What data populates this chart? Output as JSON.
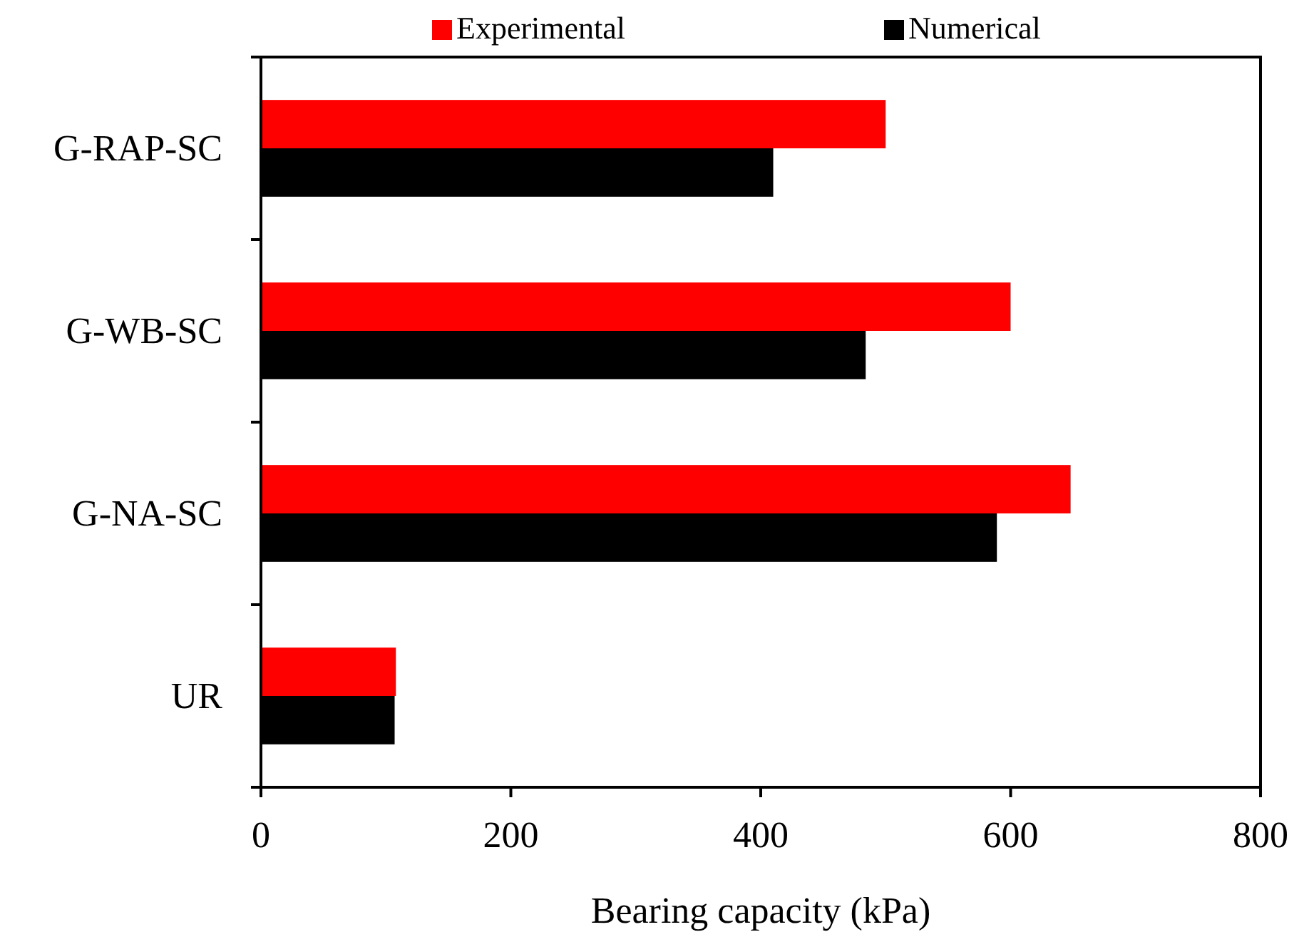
{
  "chart_data": {
    "type": "bar",
    "orientation": "horizontal",
    "xlabel": "Bearing capacity (kPa)",
    "categories": [
      "G-RAP-SC",
      "G-WB-SC",
      "G-NA-SC",
      "UR"
    ],
    "series": [
      {
        "name": "Experimental",
        "color": "#ff0000",
        "values": [
          500,
          600,
          648,
          108
        ]
      },
      {
        "name": "Numerical",
        "color": "#000000",
        "values": [
          410,
          484,
          589,
          107
        ]
      }
    ],
    "xlim": [
      0,
      800
    ],
    "xticks": [
      0,
      200,
      400,
      600,
      800
    ],
    "grid": false,
    "legend": "top"
  }
}
